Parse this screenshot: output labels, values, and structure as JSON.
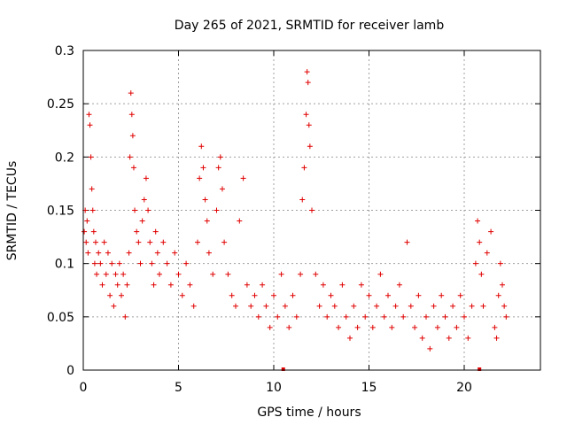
{
  "chart_data": {
    "type": "scatter",
    "title": "Day 265 of 2021, SRMTID for receiver lamb",
    "xlabel": "GPS time / hours",
    "ylabel": "SRMTID / TECUs",
    "xlim": [
      0,
      24
    ],
    "ylim": [
      0,
      0.3
    ],
    "x_ticks": [
      0,
      5,
      10,
      15,
      20
    ],
    "x_tick_labels": [
      "0",
      "5",
      "10",
      "15",
      "20"
    ],
    "y_ticks": [
      0,
      0.05,
      0.1,
      0.15,
      0.2,
      0.25,
      0.3
    ],
    "y_tick_labels": [
      "0",
      "0.05",
      "0.1",
      "0.15",
      "0.2",
      "0.25",
      "0.3"
    ],
    "grid": true,
    "marker": "+",
    "color": "#e00000",
    "series": [
      {
        "name": "SRMTID",
        "points": [
          [
            0.05,
            0.13
          ],
          [
            0.1,
            0.15
          ],
          [
            0.15,
            0.12
          ],
          [
            0.2,
            0.14
          ],
          [
            0.25,
            0.11
          ],
          [
            0.3,
            0.24
          ],
          [
            0.35,
            0.23
          ],
          [
            0.4,
            0.2
          ],
          [
            0.45,
            0.17
          ],
          [
            0.5,
            0.15
          ],
          [
            0.55,
            0.13
          ],
          [
            0.6,
            0.1
          ],
          [
            0.65,
            0.12
          ],
          [
            0.7,
            0.09
          ],
          [
            0.8,
            0.11
          ],
          [
            0.9,
            0.1
          ],
          [
            1.0,
            0.08
          ],
          [
            1.1,
            0.12
          ],
          [
            1.2,
            0.09
          ],
          [
            1.3,
            0.11
          ],
          [
            1.4,
            0.07
          ],
          [
            1.5,
            0.1
          ],
          [
            1.6,
            0.06
          ],
          [
            1.7,
            0.09
          ],
          [
            1.8,
            0.08
          ],
          [
            1.9,
            0.1
          ],
          [
            2.0,
            0.07
          ],
          [
            2.1,
            0.09
          ],
          [
            2.2,
            0.05
          ],
          [
            2.3,
            0.08
          ],
          [
            2.4,
            0.11
          ],
          [
            2.45,
            0.2
          ],
          [
            2.5,
            0.26
          ],
          [
            2.55,
            0.24
          ],
          [
            2.6,
            0.22
          ],
          [
            2.65,
            0.19
          ],
          [
            2.7,
            0.15
          ],
          [
            2.8,
            0.13
          ],
          [
            2.9,
            0.12
          ],
          [
            3.0,
            0.1
          ],
          [
            3.1,
            0.14
          ],
          [
            3.2,
            0.16
          ],
          [
            3.3,
            0.18
          ],
          [
            3.4,
            0.15
          ],
          [
            3.5,
            0.12
          ],
          [
            3.6,
            0.1
          ],
          [
            3.7,
            0.08
          ],
          [
            3.8,
            0.13
          ],
          [
            3.9,
            0.11
          ],
          [
            4.0,
            0.09
          ],
          [
            4.2,
            0.12
          ],
          [
            4.4,
            0.1
          ],
          [
            4.6,
            0.08
          ],
          [
            4.8,
            0.11
          ],
          [
            5.0,
            0.09
          ],
          [
            5.2,
            0.07
          ],
          [
            5.4,
            0.1
          ],
          [
            5.6,
            0.08
          ],
          [
            5.8,
            0.06
          ],
          [
            6.0,
            0.12
          ],
          [
            6.1,
            0.18
          ],
          [
            6.2,
            0.21
          ],
          [
            6.3,
            0.19
          ],
          [
            6.4,
            0.16
          ],
          [
            6.5,
            0.14
          ],
          [
            6.6,
            0.11
          ],
          [
            6.8,
            0.09
          ],
          [
            7.0,
            0.15
          ],
          [
            7.1,
            0.19
          ],
          [
            7.2,
            0.2
          ],
          [
            7.3,
            0.17
          ],
          [
            7.4,
            0.12
          ],
          [
            7.6,
            0.09
          ],
          [
            7.8,
            0.07
          ],
          [
            8.0,
            0.06
          ],
          [
            8.2,
            0.14
          ],
          [
            8.4,
            0.18
          ],
          [
            8.6,
            0.08
          ],
          [
            8.8,
            0.06
          ],
          [
            9.0,
            0.07
          ],
          [
            9.2,
            0.05
          ],
          [
            9.4,
            0.08
          ],
          [
            9.6,
            0.06
          ],
          [
            9.8,
            0.04
          ],
          [
            10.0,
            0.07
          ],
          [
            10.2,
            0.05
          ],
          [
            10.4,
            0.09
          ],
          [
            10.6,
            0.06
          ],
          [
            10.8,
            0.04
          ],
          [
            11.0,
            0.07
          ],
          [
            11.2,
            0.05
          ],
          [
            11.4,
            0.09
          ],
          [
            11.5,
            0.16
          ],
          [
            11.6,
            0.19
          ],
          [
            11.7,
            0.24
          ],
          [
            11.75,
            0.28
          ],
          [
            11.8,
            0.27
          ],
          [
            11.85,
            0.23
          ],
          [
            11.9,
            0.21
          ],
          [
            12.0,
            0.15
          ],
          [
            12.2,
            0.09
          ],
          [
            12.4,
            0.06
          ],
          [
            12.6,
            0.08
          ],
          [
            12.8,
            0.05
          ],
          [
            13.0,
            0.07
          ],
          [
            13.2,
            0.06
          ],
          [
            13.4,
            0.04
          ],
          [
            13.6,
            0.08
          ],
          [
            13.8,
            0.05
          ],
          [
            14.0,
            0.03
          ],
          [
            14.2,
            0.06
          ],
          [
            14.4,
            0.04
          ],
          [
            14.6,
            0.08
          ],
          [
            14.8,
            0.05
          ],
          [
            15.0,
            0.07
          ],
          [
            15.2,
            0.04
          ],
          [
            15.4,
            0.06
          ],
          [
            15.6,
            0.09
          ],
          [
            15.8,
            0.05
          ],
          [
            16.0,
            0.07
          ],
          [
            16.2,
            0.04
          ],
          [
            16.4,
            0.06
          ],
          [
            16.6,
            0.08
          ],
          [
            16.8,
            0.05
          ],
          [
            17.0,
            0.12
          ],
          [
            17.2,
            0.06
          ],
          [
            17.4,
            0.04
          ],
          [
            17.6,
            0.07
          ],
          [
            17.8,
            0.03
          ],
          [
            18.0,
            0.05
          ],
          [
            18.2,
            0.02
          ],
          [
            18.4,
            0.06
          ],
          [
            18.6,
            0.04
          ],
          [
            18.8,
            0.07
          ],
          [
            19.0,
            0.05
          ],
          [
            19.2,
            0.03
          ],
          [
            19.4,
            0.06
          ],
          [
            19.6,
            0.04
          ],
          [
            19.8,
            0.07
          ],
          [
            20.0,
            0.05
          ],
          [
            20.2,
            0.03
          ],
          [
            20.4,
            0.06
          ],
          [
            20.6,
            0.1
          ],
          [
            20.7,
            0.14
          ],
          [
            20.8,
            0.12
          ],
          [
            20.9,
            0.09
          ],
          [
            21.0,
            0.06
          ],
          [
            21.2,
            0.11
          ],
          [
            21.4,
            0.13
          ],
          [
            21.6,
            0.04
          ],
          [
            21.7,
            0.03
          ],
          [
            21.8,
            0.07
          ],
          [
            21.9,
            0.1
          ],
          [
            22.0,
            0.08
          ],
          [
            22.1,
            0.06
          ],
          [
            22.2,
            0.05
          ]
        ]
      }
    ],
    "x_axis_markers": [
      10.5,
      20.8
    ]
  }
}
